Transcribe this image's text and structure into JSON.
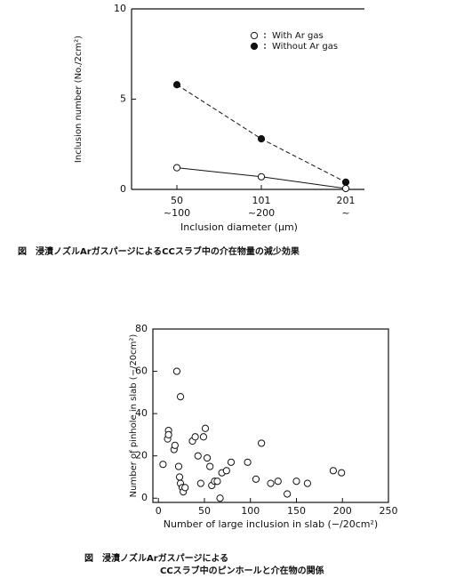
{
  "chart_data": [
    {
      "type": "line",
      "categories": [
        [
          "50",
          "~100"
        ],
        [
          "101",
          "~200"
        ],
        [
          "201",
          "~"
        ]
      ],
      "series": [
        {
          "name": "With Ar gas",
          "color": "#111111",
          "marker": "open",
          "linestyle": "solid",
          "values": [
            1.2,
            0.7,
            0.05
          ]
        },
        {
          "name": "Without Ar gas",
          "color": "#111111",
          "marker": "filled",
          "linestyle": "dashed",
          "values": [
            5.8,
            2.8,
            0.4
          ]
        }
      ],
      "ylim": [
        0,
        10
      ],
      "yticks": [
        0,
        5,
        10
      ],
      "xlabel": "Inclusion diameter (μm)",
      "ylabel": "Inclusion number (No./2cm²)",
      "legend": "upper right",
      "grid": false,
      "caption": [
        "図　浸漬ノズルArガスパージによるCCスラブ中の介在物量の減少効果"
      ]
    },
    {
      "type": "scatter",
      "series": [
        {
          "color": "#111111",
          "marker": "open",
          "x": [
            5,
            10,
            11,
            11,
            17,
            18,
            20,
            22,
            23,
            24,
            26,
            27,
            29,
            24,
            37,
            40,
            43,
            46,
            49,
            51,
            53,
            56,
            58,
            61,
            64,
            67,
            69,
            74,
            79,
            97,
            106,
            112,
            122,
            130,
            140,
            150,
            162,
            190,
            199
          ],
          "values": [
            16,
            28,
            32,
            30,
            23,
            25,
            60,
            15,
            10,
            7,
            5,
            3,
            5,
            48,
            27,
            29,
            20,
            7,
            29,
            33,
            19,
            15,
            6,
            8,
            8,
            0,
            12,
            13,
            17,
            17,
            9,
            26,
            7,
            8,
            2,
            8,
            7,
            13,
            12
          ]
        }
      ],
      "xlim": [
        -6,
        250
      ],
      "xticks": [
        0,
        50,
        100,
        150,
        200,
        250
      ],
      "ylim": [
        -2,
        80
      ],
      "yticks": [
        0,
        20,
        40,
        60,
        80
      ],
      "xlabel": "Number of large inclusion in slab (−/20cm²)",
      "ylabel": "Number of pinhole in slab (−/20cm²)",
      "grid": false,
      "caption": [
        "図　浸漬ノズルArガスパージによる",
        "CCスラブ中のピンホールと介在物の関係"
      ]
    }
  ]
}
